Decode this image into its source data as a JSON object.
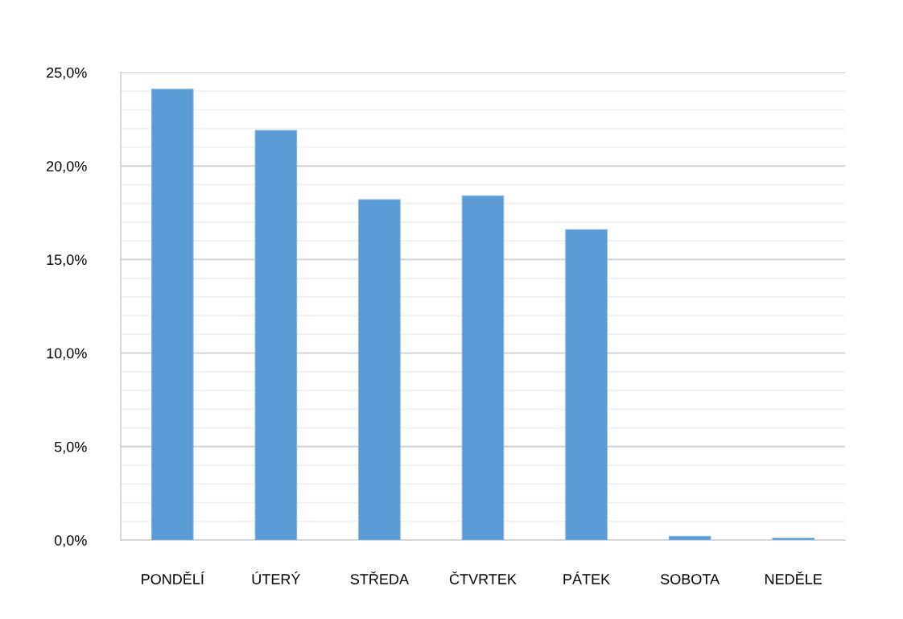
{
  "chart_data": {
    "type": "bar",
    "categories": [
      "PONDĚLÍ",
      "ÚTERÝ",
      "STŘEDA",
      "ČTVRTEK",
      "PÁTEK",
      "SOBOTA",
      "NEDĚLE"
    ],
    "values": [
      24.1,
      21.9,
      18.2,
      18.4,
      16.6,
      0.2,
      0.1
    ],
    "color": "#5b9bd5",
    "ylim": [
      0,
      25
    ],
    "yticks": [
      {
        "value": 0,
        "label": "0,0%"
      },
      {
        "value": 1,
        "label": null
      },
      {
        "value": 2,
        "label": null
      },
      {
        "value": 3,
        "label": null
      },
      {
        "value": 4,
        "label": null
      },
      {
        "value": 5,
        "label": "5,0%"
      },
      {
        "value": 6,
        "label": null
      },
      {
        "value": 7,
        "label": null
      },
      {
        "value": 8,
        "label": null
      },
      {
        "value": 9,
        "label": null
      },
      {
        "value": 10,
        "label": "10,0%"
      },
      {
        "value": 11,
        "label": null
      },
      {
        "value": 12,
        "label": null
      },
      {
        "value": 13,
        "label": null
      },
      {
        "value": 14,
        "label": null
      },
      {
        "value": 15,
        "label": "15,0%"
      },
      {
        "value": 16,
        "label": null
      },
      {
        "value": 17,
        "label": null
      },
      {
        "value": 18,
        "label": null
      },
      {
        "value": 19,
        "label": null
      },
      {
        "value": 20,
        "label": "20,0%"
      },
      {
        "value": 21,
        "label": null
      },
      {
        "value": 22,
        "label": null
      },
      {
        "value": 23,
        "label": null
      },
      {
        "value": 24,
        "label": null
      },
      {
        "value": 25,
        "label": "25,0%"
      }
    ],
    "grid": "y"
  }
}
